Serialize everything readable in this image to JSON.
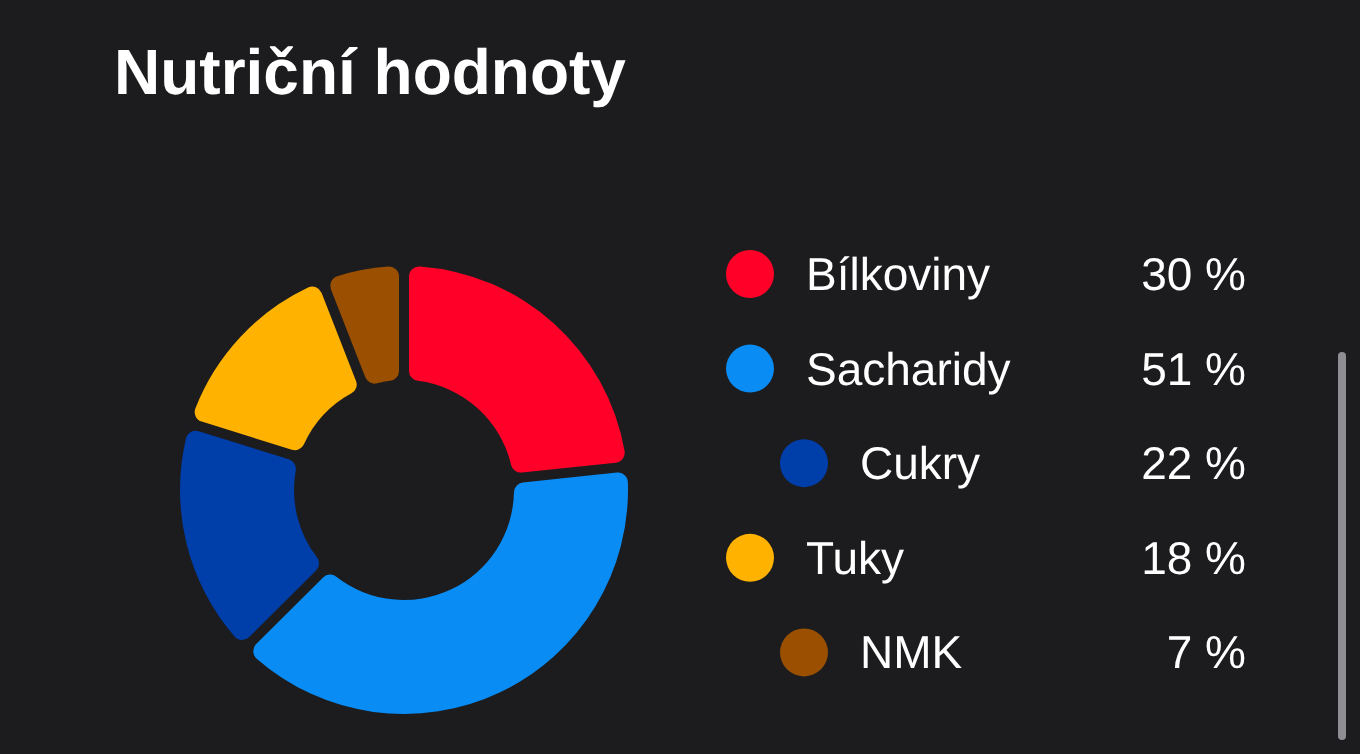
{
  "chart_data": {
    "type": "donut",
    "title": "Nutriční hodnoty",
    "categories": [
      "Bílkoviny",
      "Sacharidy",
      "Cukry",
      "Tuky",
      "NMK"
    ],
    "values": [
      30,
      51,
      22,
      18,
      7
    ],
    "colors": [
      "#ff0028",
      "#0a8cf5",
      "#003eaa",
      "#ffb300",
      "#9a5000"
    ],
    "value_labels": [
      "30 %",
      "51 %",
      "22 %",
      "18 %",
      "7 %"
    ],
    "legend": "right"
  }
}
